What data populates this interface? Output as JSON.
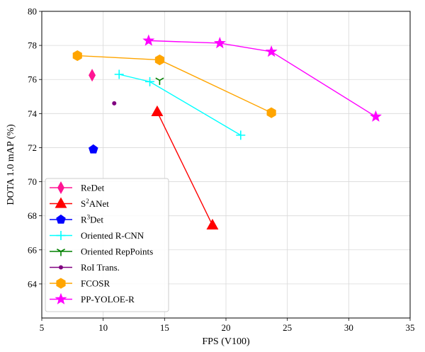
{
  "chart_data": {
    "type": "scatter",
    "xlabel": "FPS (V100)",
    "ylabel": "DOTA 1.0 mAP (%)",
    "xlim": [
      5,
      35
    ],
    "ylim": [
      62,
      80
    ],
    "xticks": [
      5,
      10,
      15,
      20,
      25,
      30,
      35
    ],
    "yticks": [
      64,
      66,
      68,
      70,
      72,
      74,
      76,
      78,
      80
    ],
    "grid": true,
    "legend_position": "lower-left",
    "series": [
      {
        "name": "ReDet",
        "base": "ReDet",
        "sup": "",
        "suffix": "",
        "marker": "thin_diamond",
        "color": "#ff1493",
        "points": [
          [
            9.1,
            76.25
          ]
        ]
      },
      {
        "name": "S2ANet",
        "base": "S",
        "sup": "2",
        "suffix": "ANet",
        "marker": "triangle",
        "color": "#ff0000",
        "points": [
          [
            14.4,
            74.1
          ],
          [
            18.9,
            67.45
          ]
        ]
      },
      {
        "name": "R3Det",
        "base": "R",
        "sup": "3",
        "suffix": "Det",
        "marker": "pentagon",
        "color": "#0000ff",
        "points": [
          [
            9.2,
            71.9
          ]
        ]
      },
      {
        "name": "Oriented R-CNN",
        "base": "Oriented R-CNN",
        "sup": "",
        "suffix": "",
        "marker": "plus",
        "color": "#00ffff",
        "points": [
          [
            11.3,
            76.3
          ],
          [
            13.8,
            75.87
          ],
          [
            21.2,
            72.73
          ]
        ]
      },
      {
        "name": "Oriented RepPoints",
        "base": "Oriented RepPoints",
        "sup": "",
        "suffix": "",
        "marker": "tri_down",
        "color": "#008000",
        "points": [
          [
            14.6,
            75.95
          ]
        ]
      },
      {
        "name": "RoI Trans.",
        "base": "RoI Trans.",
        "sup": "",
        "suffix": "",
        "marker": "dot",
        "color": "#800080",
        "points": [
          [
            10.9,
            74.6
          ]
        ]
      },
      {
        "name": "FCOSR",
        "base": "FCOSR",
        "sup": "",
        "suffix": "",
        "marker": "hexagon",
        "color": "#ffa500",
        "points": [
          [
            7.9,
            77.4
          ],
          [
            14.6,
            77.15
          ],
          [
            23.7,
            74.05
          ]
        ]
      },
      {
        "name": "PP-YOLOE-R",
        "base": "PP-YOLOE-R",
        "sup": "",
        "suffix": "",
        "marker": "star",
        "color": "#ff00ff",
        "points": [
          [
            13.7,
            78.28
          ],
          [
            19.5,
            78.13
          ],
          [
            23.7,
            77.63
          ],
          [
            32.2,
            73.82
          ]
        ]
      }
    ]
  }
}
